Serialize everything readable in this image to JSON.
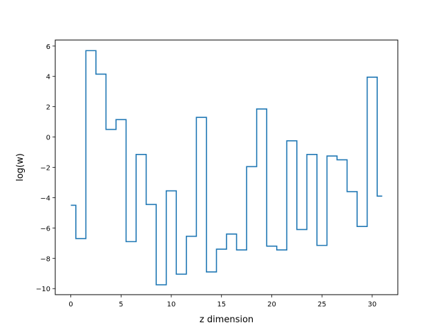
{
  "chart_data": {
    "type": "line",
    "step": "mid",
    "xlabel": "z dimension",
    "ylabel": "log(w)",
    "xlim": [
      -1.55,
      32.55
    ],
    "ylim": [
      -10.4,
      6.4
    ],
    "xticks": [
      0,
      5,
      10,
      15,
      20,
      25,
      30
    ],
    "yticks": [
      -10,
      -8,
      -6,
      -4,
      -2,
      0,
      2,
      4,
      6
    ],
    "grid": false,
    "series": [
      {
        "color": "#1f77b4",
        "x": [
          0,
          1,
          2,
          3,
          4,
          5,
          6,
          7,
          8,
          9,
          10,
          11,
          12,
          13,
          14,
          15,
          16,
          17,
          18,
          19,
          20,
          21,
          22,
          23,
          24,
          25,
          26,
          27,
          28,
          29,
          30,
          31
        ],
        "y": [
          -4.5,
          -6.7,
          5.7,
          4.15,
          0.5,
          1.15,
          -6.9,
          -1.15,
          -4.45,
          -9.75,
          -3.55,
          -9.05,
          -6.55,
          1.3,
          -8.9,
          -7.4,
          -6.4,
          -7.45,
          -1.95,
          1.85,
          -7.2,
          -7.45,
          -0.25,
          -6.1,
          -1.15,
          -7.15,
          -1.25,
          -1.5,
          -3.6,
          -5.9,
          3.95,
          -3.9
        ]
      }
    ]
  }
}
